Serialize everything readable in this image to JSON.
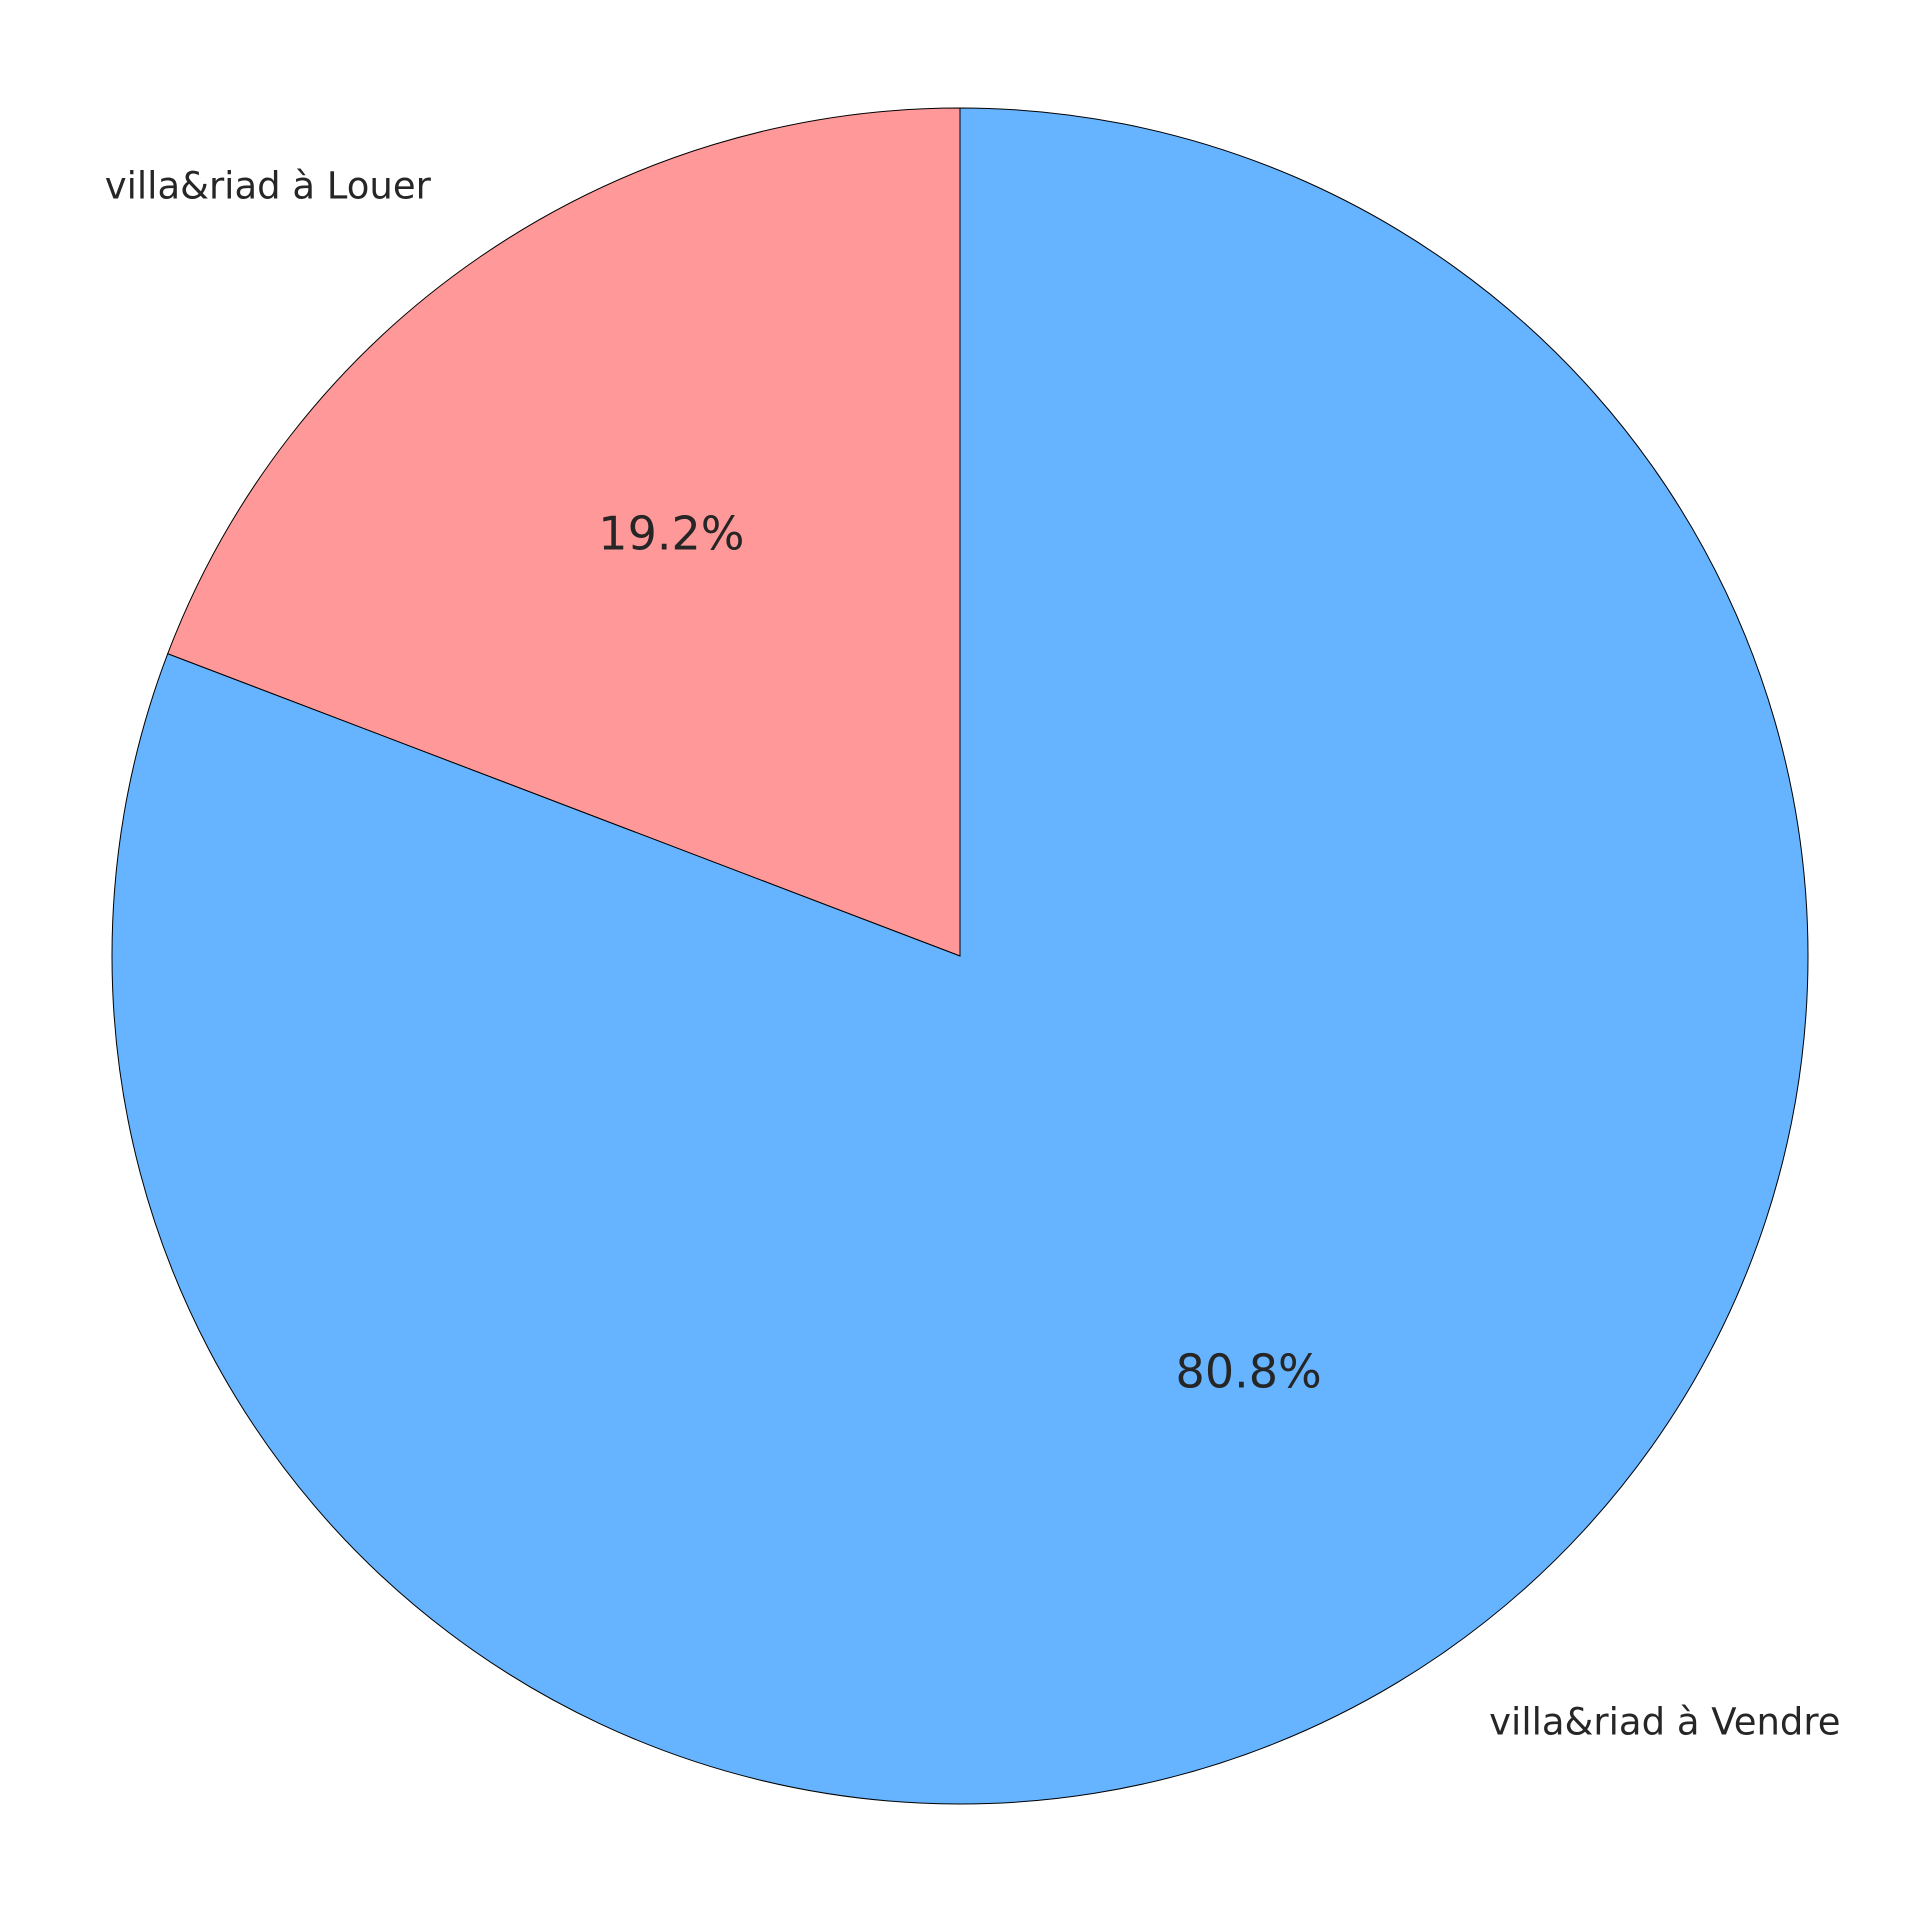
{
  "chart_data": {
    "type": "pie",
    "slices": [
      {
        "label": "villa&riad à Louer",
        "value": 19.2,
        "pct_label": "19.2%",
        "color": "#ff9999"
      },
      {
        "label": "villa&riad à Vendre",
        "value": 80.8,
        "pct_label": "80.8%",
        "color": "#66b3ff"
      }
    ],
    "start_angle_deg": 90,
    "direction": "counterclockwise",
    "edge_color": "#000000"
  }
}
